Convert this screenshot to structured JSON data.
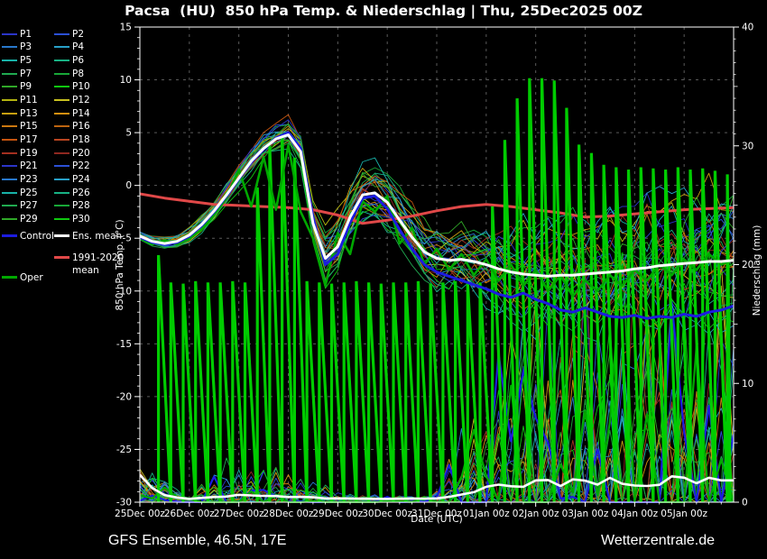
{
  "title": "Pacsa  (HU)  850 hPa Temp. & Niederschlag | Thu, 25Dec2025 00Z",
  "footer": {
    "left": "GFS Ensemble, 46.5N, 17E",
    "right": "Wetterzentrale.de"
  },
  "chart_data": {
    "type": "line",
    "title": "Pacsa (HU) 850 hPa Temp. & Niederschlag | Thu, 25Dec2025 00Z",
    "xlabel": "Date (UTC)",
    "ylabel_left": "850 hPa Temp. (°C)",
    "ylabel_right": "Niederschlag (mm)",
    "ylim_left": [
      -30,
      15
    ],
    "yticks_left": [
      15,
      10,
      5,
      0,
      -5,
      -10,
      -15,
      -20,
      -25,
      -30
    ],
    "ylim_right": [
      0,
      40
    ],
    "yticks_right": [
      0,
      10,
      20,
      30,
      40
    ],
    "x_hours_range": [
      0,
      288
    ],
    "x_tick_step_hours": 24,
    "x_tick_labels": [
      "25Dec 00z",
      "26Dec 00z",
      "27Dec 00z",
      "28Dec 00z",
      "29Dec 00z",
      "30Dec 00z",
      "31Dec 00z",
      "01Jan 00z",
      "02Jan 00z",
      "03Jan 00z",
      "04Jan 00z",
      "05Jan 00z"
    ],
    "grid": true,
    "step_hours": 6,
    "series": {
      "ens_mean_temp": [
        -4.8,
        -5.3,
        -5.5,
        -5.3,
        -4.7,
        -3.7,
        -2.4,
        -0.9,
        0.7,
        2.3,
        3.5,
        4.4,
        4.8,
        3.2,
        -3.6,
        -6.9,
        -5.8,
        -3.0,
        -0.9,
        -0.7,
        -1.6,
        -3.3,
        -4.9,
        -6.3,
        -6.9,
        -7.1,
        -7.0,
        -7.2,
        -7.5,
        -7.9,
        -8.2,
        -8.4,
        -8.5,
        -8.6,
        -8.5,
        -8.5,
        -8.4,
        -8.3,
        -8.2,
        -8.1,
        -7.9,
        -7.8,
        -7.6,
        -7.5,
        -7.4,
        -7.3,
        -7.2,
        -7.2,
        -7.1
      ],
      "control_temp": [
        -4.9,
        -5.4,
        -5.6,
        -5.4,
        -4.8,
        -3.8,
        -2.5,
        -1.0,
        0.6,
        2.2,
        3.4,
        4.5,
        5.0,
        3.5,
        -3.0,
        -7.5,
        -6.5,
        -3.5,
        -1.2,
        -1.0,
        -2.2,
        -4.2,
        -6.0,
        -7.5,
        -8.2,
        -8.6,
        -9.0,
        -9.4,
        -9.8,
        -10.3,
        -10.6,
        -10.2,
        -10.8,
        -11.2,
        -11.8,
        -12.0,
        -11.6,
        -12.0,
        -12.4,
        -12.5,
        -12.3,
        -12.6,
        -12.4,
        -12.5,
        -12.2,
        -12.4,
        -12.0,
        -11.8,
        -11.4
      ],
      "oper_temp": [
        -5.0,
        -5.6,
        -5.2,
        -5.6,
        -5.0,
        -4.2,
        -2.8,
        -1.2,
        1.5,
        -2.0,
        2.7,
        -2.3,
        3.8,
        -2.5,
        -5.0,
        -9.5,
        -4.5,
        -6.5,
        -1.5,
        -2.5,
        -1.0,
        -5.5,
        -4.0,
        -7.5,
        -6.0,
        -8.0,
        -6.5,
        -8.5,
        -7.0,
        -9.0,
        -7.5,
        -9.5,
        -8.0,
        -10.0,
        -8.5,
        -10.5,
        -9.0,
        -10.0,
        -8.5,
        -9.5,
        -8.0,
        -9.0,
        -7.5,
        -8.5,
        -7.0,
        -8.0,
        -6.5,
        -7.5,
        -7.0
      ],
      "climate_mean_temp": {
        "step_hours": 12,
        "values": [
          -0.8,
          -1.2,
          -1.5,
          -1.8,
          -1.9,
          -2.0,
          -2.1,
          -2.3,
          -2.8,
          -3.6,
          -3.3,
          -2.9,
          -2.4,
          -2.0,
          -1.8,
          -2.0,
          -2.3,
          -2.6,
          -3.0,
          -2.9,
          -2.7,
          -2.5,
          -2.3,
          -2.2,
          -2.1
        ]
      },
      "precip_spikes": {
        "start_hour": 9,
        "step_hours": 6,
        "values_mm": [
          20.8,
          18.5,
          18.4,
          18.6,
          18.5,
          18.5,
          18.6,
          18.5,
          26.5,
          30.0,
          31.0,
          29.0,
          18.6,
          18.5,
          18.4,
          18.5,
          18.6,
          18.5,
          18.4,
          18.5,
          18.5,
          18.6,
          18.4,
          18.5,
          18.6,
          18.4,
          18.5,
          24.9,
          30.5,
          34.0,
          35.7,
          35.7,
          35.5,
          33.2,
          30.1,
          29.4,
          28.4,
          28.2,
          28.0,
          28.2,
          28.1,
          28.0,
          28.2,
          28.0,
          28.1,
          27.9,
          27.6
        ]
      },
      "member_temp_spread": {
        "step_hours": 24,
        "values": [
          0.6,
          0.9,
          1.3,
          1.8,
          3.6,
          3.4,
          3.8,
          5.0,
          6.5,
          7.5,
          8.0,
          8.2,
          8.5
        ]
      },
      "member_precip_amp": {
        "step_hours": 24,
        "values": [
          2.5,
          0.3,
          2.2,
          1.5,
          0.4,
          0.3,
          0.5,
          6.0,
          10.0,
          11.0,
          11.0,
          11.0,
          11.0
        ]
      },
      "ens_mean_precip_start": [
        2.3,
        1.2,
        0.6
      ]
    },
    "members": {
      "count": 30,
      "labels": [
        "P1",
        "P2",
        "P3",
        "P4",
        "P5",
        "P6",
        "P7",
        "P8",
        "P9",
        "P10",
        "P11",
        "P12",
        "P13",
        "P14",
        "P15",
        "P16",
        "P17",
        "P18",
        "P19",
        "P20",
        "P21",
        "P22",
        "P23",
        "P24",
        "P25",
        "P26",
        "P27",
        "P28",
        "P29",
        "P30"
      ]
    },
    "legend": {
      "control": "Control",
      "ens_mean": "Ens. mean",
      "oper": "Oper",
      "climate_line1": "1991-2020",
      "climate_line2": "mean"
    },
    "colors": {
      "background": "#000000",
      "text": "#ffffff",
      "grid": "#5a5a5a",
      "member_palette": [
        "#2b35c8",
        "#2b50d5",
        "#2878cc",
        "#28a0c8",
        "#18b2a8",
        "#18b284",
        "#20aa50",
        "#18a838",
        "#30a828",
        "#10c810",
        "#b4b410",
        "#c8c020",
        "#c8a010",
        "#d89010",
        "#cc7810",
        "#bc6410",
        "#c45410",
        "#b84420",
        "#a43020",
        "#8f2820"
      ],
      "control": "#1c1ce0",
      "ens_mean": "#ffffff",
      "oper": "#00a800",
      "climate_mean": "#e04848",
      "precip_spike": "#00cc00"
    }
  }
}
